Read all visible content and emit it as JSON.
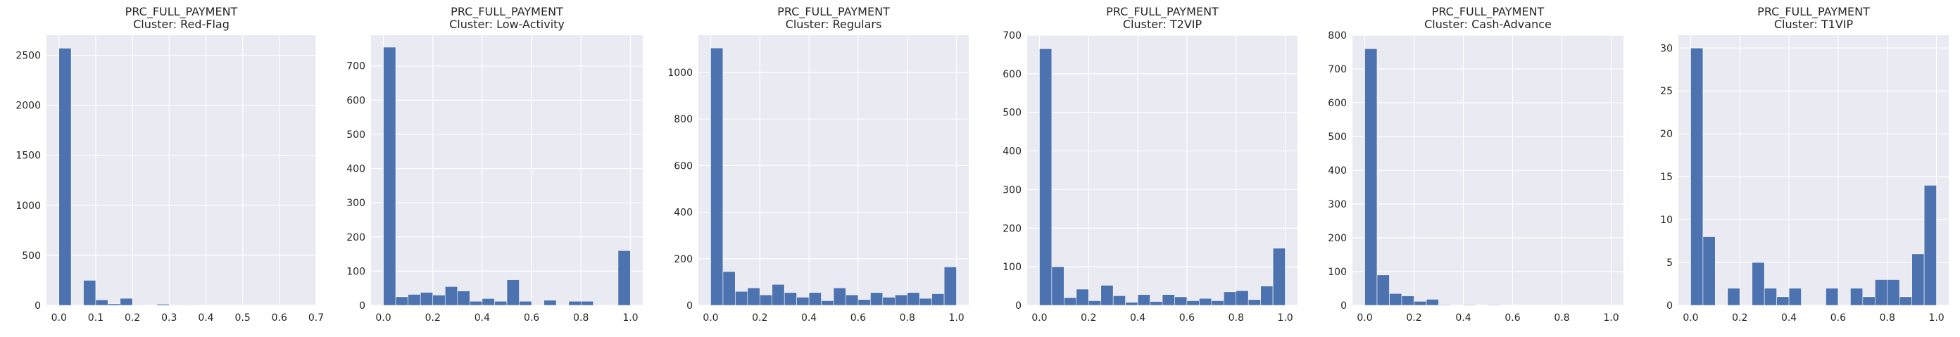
{
  "figure": {
    "title": ""
  },
  "chart_data": [
    {
      "type": "bar",
      "title": "PRC_FULL_PAYMENT",
      "subtitle": "Cluster: Red-Flag",
      "xlim": [
        -0.034,
        0.7
      ],
      "ylim": [
        0,
        2700
      ],
      "xticks": [
        "0.0",
        "0.1",
        "0.2",
        "0.3",
        "0.4",
        "0.5",
        "0.6",
        "0.7"
      ],
      "xtick_values": [
        0,
        0.1,
        0.2,
        0.3,
        0.4,
        0.5,
        0.6,
        0.7
      ],
      "yticks": [
        "0",
        "500",
        "1000",
        "1500",
        "2000",
        "2500"
      ],
      "ytick_values": [
        0,
        500,
        1000,
        1500,
        2000,
        2500
      ],
      "bin_edges": [
        0,
        0.0333,
        0.0667,
        0.1,
        0.1333,
        0.1667,
        0.2,
        0.2333,
        0.2667,
        0.3,
        0.3333,
        0.3667,
        0.4,
        0.4333,
        0.4667,
        0.5,
        0.5333,
        0.5667,
        0.6,
        0.6333,
        0.6667
      ],
      "values": [
        2570,
        0,
        250,
        55,
        15,
        70,
        5,
        0,
        12,
        2,
        1,
        0,
        0,
        0,
        0,
        0,
        0,
        0,
        0,
        0
      ],
      "color": "#4c72b0"
    },
    {
      "type": "bar",
      "title": "PRC_FULL_PAYMENT",
      "subtitle": "Cluster: Low-Activity",
      "xlim": [
        -0.05,
        1.05
      ],
      "ylim": [
        0,
        790
      ],
      "xticks": [
        "0.0",
        "0.2",
        "0.4",
        "0.6",
        "0.8",
        "1.0"
      ],
      "xtick_values": [
        0,
        0.2,
        0.4,
        0.6,
        0.8,
        1.0
      ],
      "yticks": [
        "0",
        "100",
        "200",
        "300",
        "400",
        "500",
        "600",
        "700"
      ],
      "ytick_values": [
        0,
        100,
        200,
        300,
        400,
        500,
        600,
        700
      ],
      "bin_edges": [
        0,
        0.05,
        0.1,
        0.15,
        0.2,
        0.25,
        0.3,
        0.35,
        0.4,
        0.45,
        0.5,
        0.55,
        0.6,
        0.65,
        0.7,
        0.75,
        0.8,
        0.85,
        0.9,
        0.95,
        1.0
      ],
      "values": [
        755,
        25,
        32,
        38,
        30,
        55,
        42,
        12,
        20,
        12,
        75,
        12,
        0,
        15,
        0,
        12,
        12,
        0,
        0,
        160
      ],
      "color": "#4c72b0"
    },
    {
      "type": "bar",
      "title": "PRC_FULL_PAYMENT",
      "subtitle": "Cluster: Regulars",
      "xlim": [
        -0.05,
        1.05
      ],
      "ylim": [
        0,
        1160
      ],
      "xticks": [
        "0.0",
        "0.2",
        "0.4",
        "0.6",
        "0.8",
        "1.0"
      ],
      "xtick_values": [
        0,
        0.2,
        0.4,
        0.6,
        0.8,
        1.0
      ],
      "yticks": [
        "0",
        "200",
        "400",
        "600",
        "800",
        "1000"
      ],
      "ytick_values": [
        0,
        200,
        400,
        600,
        800,
        1000
      ],
      "bin_edges": [
        0,
        0.05,
        0.1,
        0.15,
        0.2,
        0.25,
        0.3,
        0.35,
        0.4,
        0.45,
        0.5,
        0.55,
        0.6,
        0.65,
        0.7,
        0.75,
        0.8,
        0.85,
        0.9,
        0.95,
        1.0
      ],
      "values": [
        1105,
        145,
        60,
        75,
        45,
        90,
        55,
        35,
        55,
        20,
        75,
        45,
        25,
        55,
        35,
        45,
        55,
        30,
        50,
        165
      ],
      "color": "#4c72b0"
    },
    {
      "type": "bar",
      "title": "PRC_FULL_PAYMENT",
      "subtitle": "Cluster: T2VIP",
      "xlim": [
        -0.05,
        1.05
      ],
      "ylim": [
        0,
        700
      ],
      "xticks": [
        "0.0",
        "0.2",
        "0.4",
        "0.6",
        "0.8",
        "1.0"
      ],
      "xtick_values": [
        0,
        0.2,
        0.4,
        0.6,
        0.8,
        1.0
      ],
      "yticks": [
        "0",
        "100",
        "200",
        "300",
        "400",
        "500",
        "600",
        "700"
      ],
      "ytick_values": [
        0,
        100,
        200,
        300,
        400,
        500,
        600,
        700
      ],
      "bin_edges": [
        0,
        0.05,
        0.1,
        0.15,
        0.2,
        0.25,
        0.3,
        0.35,
        0.4,
        0.45,
        0.5,
        0.55,
        0.6,
        0.65,
        0.7,
        0.75,
        0.8,
        0.85,
        0.9,
        0.95,
        1.0
      ],
      "values": [
        665,
        100,
        20,
        42,
        12,
        52,
        25,
        8,
        28,
        10,
        28,
        22,
        12,
        18,
        12,
        35,
        38,
        15,
        50,
        148
      ],
      "color": "#4c72b0"
    },
    {
      "type": "bar",
      "title": "PRC_FULL_PAYMENT",
      "subtitle": "Cluster: Cash-Advance",
      "xlim": [
        -0.05,
        1.05
      ],
      "ylim": [
        0,
        800
      ],
      "xticks": [
        "0.0",
        "0.2",
        "0.4",
        "0.6",
        "0.8",
        "1.0"
      ],
      "xtick_values": [
        0,
        0.2,
        0.4,
        0.6,
        0.8,
        1.0
      ],
      "yticks": [
        "0",
        "100",
        "200",
        "300",
        "400",
        "500",
        "600",
        "700",
        "800"
      ],
      "ytick_values": [
        0,
        100,
        200,
        300,
        400,
        500,
        600,
        700,
        800
      ],
      "bin_edges": [
        0,
        0.05,
        0.1,
        0.15,
        0.2,
        0.25,
        0.3,
        0.35,
        0.4,
        0.45,
        0.5,
        0.55,
        0.6,
        0.65,
        0.7,
        0.75,
        0.8,
        0.85,
        0.9,
        0.95,
        1.0
      ],
      "values": [
        760,
        90,
        35,
        28,
        12,
        18,
        2,
        1,
        2,
        1,
        2,
        1,
        1,
        1,
        1,
        1,
        1,
        1,
        1,
        1
      ],
      "color": "#4c72b0"
    },
    {
      "type": "bar",
      "title": "PRC_FULL_PAYMENT",
      "subtitle": "Cluster: T1VIP",
      "xlim": [
        -0.05,
        1.05
      ],
      "ylim": [
        0,
        31.5
      ],
      "xticks": [
        "0.0",
        "0.2",
        "0.4",
        "0.6",
        "0.8",
        "1.0"
      ],
      "xtick_values": [
        0,
        0.2,
        0.4,
        0.6,
        0.8,
        1.0
      ],
      "yticks": [
        "0",
        "5",
        "10",
        "15",
        "20",
        "25",
        "30"
      ],
      "ytick_values": [
        0,
        5,
        10,
        15,
        20,
        25,
        30
      ],
      "bin_edges": [
        0,
        0.05,
        0.1,
        0.15,
        0.2,
        0.25,
        0.3,
        0.35,
        0.4,
        0.45,
        0.5,
        0.55,
        0.6,
        0.65,
        0.7,
        0.75,
        0.8,
        0.85,
        0.9,
        0.95,
        1.0
      ],
      "values": [
        30,
        8,
        0,
        2,
        0,
        5,
        2,
        1,
        2,
        0,
        0,
        2,
        0,
        2,
        1,
        3,
        3,
        1,
        6,
        14
      ],
      "color": "#4c72b0"
    }
  ]
}
